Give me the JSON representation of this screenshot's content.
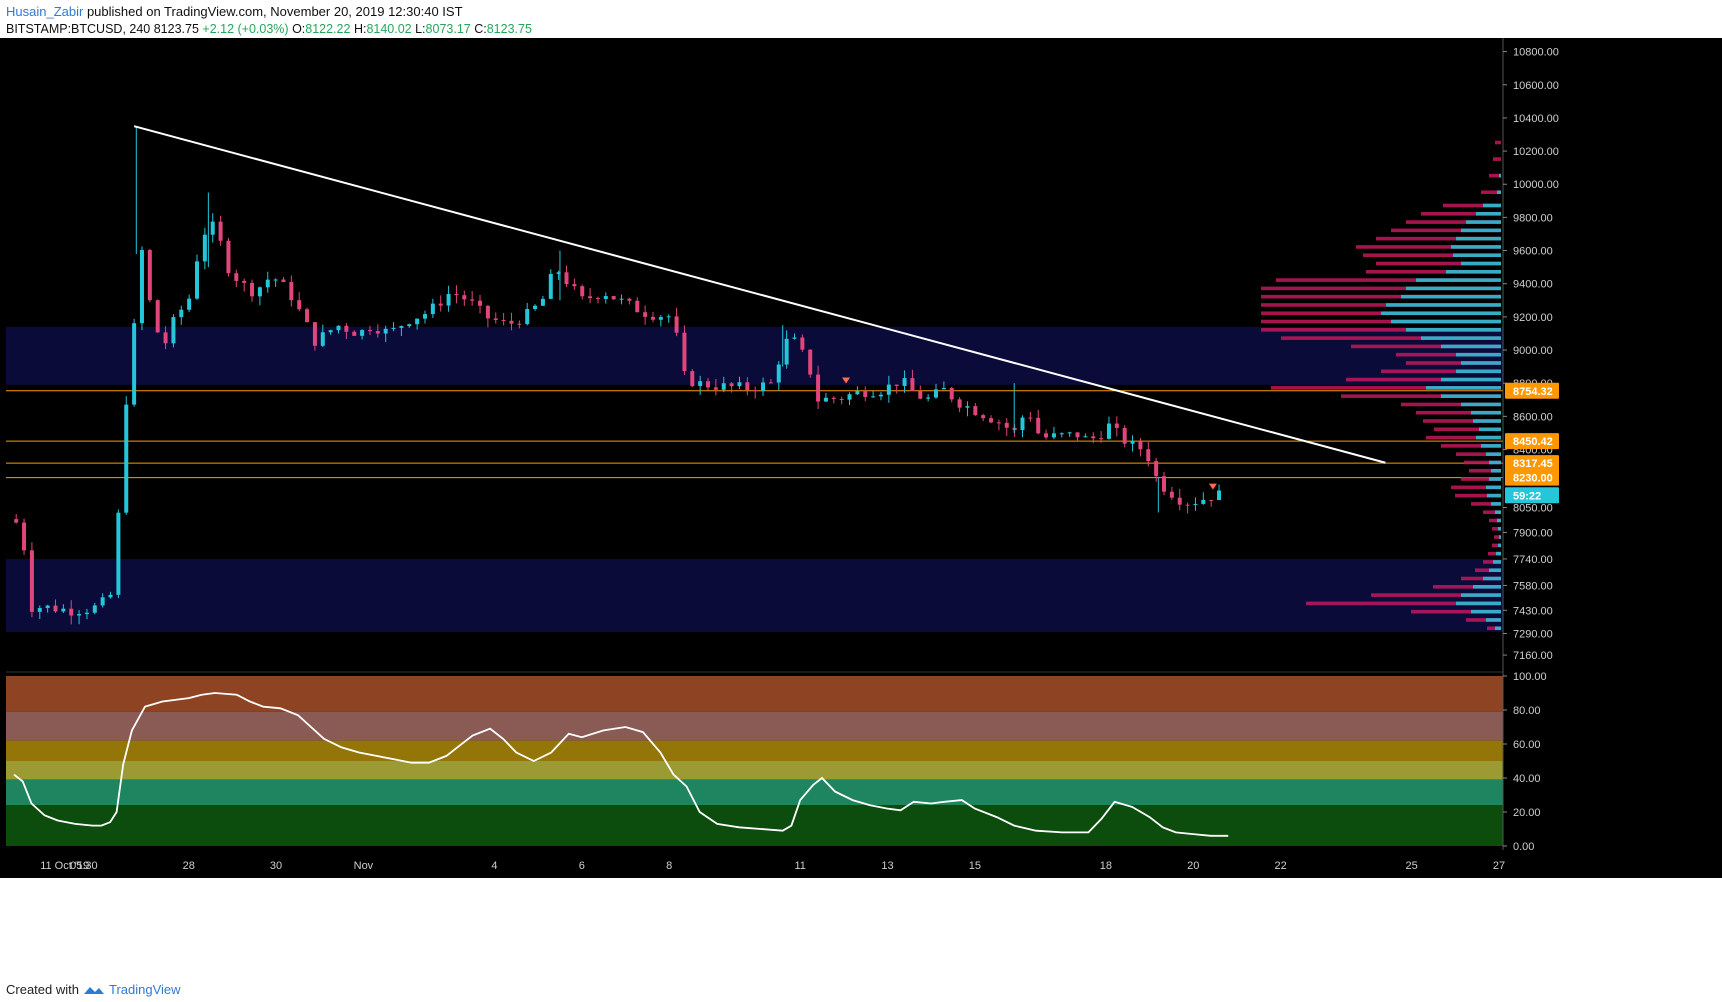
{
  "header": {
    "author": "Husain_Zabir",
    "published": "published on TradingView.com, November 20, 2019 12:30:40 IST",
    "symbol": "BITSTAMP:BTCUSD, 240",
    "last": "8123.75",
    "change": "+2.12 (+0.03%)",
    "o_label": "O:",
    "o": "8122.22",
    "h_label": "H:",
    "h": "8140.02",
    "l_label": "L:",
    "l": "8073.17",
    "c_label": "C:",
    "c": "8123.75"
  },
  "footer": {
    "created": "Created with",
    "brand": "TradingView"
  },
  "colors": {
    "bg": "#000000",
    "up": "#26c6da",
    "down": "#e0457b",
    "trend": "#ffffff",
    "level": "#ff9800",
    "zone": "#0b0b3a",
    "rsi_line": "#ffffff",
    "vp_up": "#26c6da",
    "vp_down": "#c2185b"
  },
  "chart_data": [
    {
      "type": "candlestick",
      "ylim": [
        7070,
        10870
      ],
      "y_ticks": [
        "10800.00",
        "10600.00",
        "10400.00",
        "10200.00",
        "10000.00",
        "9800.00",
        "9600.00",
        "9400.00",
        "9200.00",
        "9000.00",
        "8800.00",
        "8600.00",
        "8400.00",
        "8050.00",
        "7900.00",
        "7740.00",
        "7580.00",
        "7430.00",
        "7290.00",
        "7160.00"
      ],
      "x_ticks": [
        {
          "label": "11 Oct '19",
          "x": 0.6
        },
        {
          "label": "05:30",
          "x": 1.6
        },
        {
          "label": "28",
          "x": 4.0
        },
        {
          "label": "30",
          "x": 6.0
        },
        {
          "label": "Nov",
          "x": 8.0
        },
        {
          "label": "4",
          "x": 11.0
        },
        {
          "label": "6",
          "x": 13.0
        },
        {
          "label": "8",
          "x": 15.0
        },
        {
          "label": "11",
          "x": 18.0
        },
        {
          "label": "13",
          "x": 20.0
        },
        {
          "label": "15",
          "x": 22.0
        },
        {
          "label": "18",
          "x": 25.0
        },
        {
          "label": "20",
          "x": 27.0
        },
        {
          "label": "22",
          "x": 29.0
        },
        {
          "label": "25",
          "x": 32.0
        },
        {
          "label": "27",
          "x": 34.0
        }
      ],
      "price_labels": [
        {
          "price": 8754.32,
          "text": "8754.32",
          "style": "orange"
        },
        {
          "price": 8450.42,
          "text": "8450.42",
          "style": "orange"
        },
        {
          "price": 8317.45,
          "text": "8317.45",
          "style": "orange"
        },
        {
          "price": 8230.0,
          "text": "8230.00",
          "style": "orange"
        },
        {
          "price": 8123.75,
          "text": "59:22",
          "style": "cyan"
        }
      ],
      "levels": [
        8754.32,
        8450.42,
        8317.45,
        8230.0
      ],
      "zones": [
        [
          8790,
          9140
        ],
        [
          7300,
          7740
        ]
      ],
      "trendline": {
        "start": [
          2.75,
          10350
        ],
        "end": [
          31.4,
          8320
        ]
      },
      "marks": [
        {
          "x": 19.05,
          "price": 8810
        },
        {
          "x": 27.45,
          "price": 8170
        }
      ],
      "keypoints": [
        [
          0.0,
          7980
        ],
        [
          0.2,
          7900
        ],
        [
          0.35,
          7450
        ],
        [
          0.7,
          7450
        ],
        [
          1.3,
          7430
        ],
        [
          1.8,
          7440
        ],
        [
          2.2,
          7500
        ],
        [
          2.35,
          7800
        ],
        [
          2.45,
          8300
        ],
        [
          2.55,
          8700
        ],
        [
          2.7,
          8700
        ],
        [
          2.8,
          9570
        ],
        [
          2.95,
          9600
        ],
        [
          3.1,
          9300
        ],
        [
          3.4,
          9000
        ],
        [
          3.7,
          9200
        ],
        [
          4.0,
          9300
        ],
        [
          4.3,
          9700
        ],
        [
          4.6,
          9750
        ],
        [
          4.9,
          9500
        ],
        [
          5.2,
          9400
        ],
        [
          5.5,
          9350
        ],
        [
          5.9,
          9450
        ],
        [
          6.3,
          9350
        ],
        [
          6.6,
          9200
        ],
        [
          6.9,
          9050
        ],
        [
          7.4,
          9150
        ],
        [
          7.9,
          9100
        ],
        [
          8.2,
          9150
        ],
        [
          8.6,
          9100
        ],
        [
          9.0,
          9180
        ],
        [
          9.5,
          9230
        ],
        [
          10.0,
          9350
        ],
        [
          10.4,
          9300
        ],
        [
          10.8,
          9200
        ],
        [
          11.3,
          9150
        ],
        [
          11.8,
          9220
        ],
        [
          12.1,
          9300
        ],
        [
          12.4,
          9500
        ],
        [
          12.7,
          9400
        ],
        [
          13.0,
          9300
        ],
        [
          13.5,
          9350
        ],
        [
          14.0,
          9280
        ],
        [
          14.5,
          9220
        ],
        [
          15.1,
          9200
        ],
        [
          15.3,
          8850
        ],
        [
          15.6,
          8800
        ],
        [
          16.2,
          8780
        ],
        [
          16.8,
          8770
        ],
        [
          17.4,
          8800
        ],
        [
          17.6,
          9050
        ],
        [
          17.9,
          9050
        ],
        [
          18.2,
          8900
        ],
        [
          18.4,
          8700
        ],
        [
          18.9,
          8710
        ],
        [
          19.4,
          8750
        ],
        [
          19.9,
          8760
        ],
        [
          20.3,
          8820
        ],
        [
          20.6,
          8740
        ],
        [
          20.9,
          8700
        ],
        [
          21.3,
          8760
        ],
        [
          21.6,
          8690
        ],
        [
          21.9,
          8650
        ],
        [
          22.3,
          8600
        ],
        [
          22.6,
          8560
        ],
        [
          22.9,
          8500
        ],
        [
          23.2,
          8650
        ],
        [
          23.5,
          8470
        ],
        [
          23.9,
          8480
        ],
        [
          24.4,
          8490
        ],
        [
          24.6,
          8450
        ],
        [
          24.9,
          8500
        ],
        [
          25.1,
          8550
        ],
        [
          25.3,
          8480
        ],
        [
          25.6,
          8420
        ],
        [
          25.9,
          8400
        ],
        [
          26.2,
          8200
        ],
        [
          26.4,
          8160
        ],
        [
          26.7,
          8100
        ],
        [
          26.9,
          8080
        ],
        [
          27.2,
          8100
        ],
        [
          27.5,
          8130
        ],
        [
          27.7,
          8123
        ]
      ]
    },
    {
      "type": "line",
      "title": "",
      "ylim": [
        0,
        100
      ],
      "y_ticks": [
        "100.00",
        "80.00",
        "60.00",
        "40.00",
        "20.00",
        "0.00"
      ],
      "bands": [
        {
          "from": 79,
          "to": 100,
          "color": "#8e4423"
        },
        {
          "from": 62,
          "to": 79,
          "color": "#8a5a55"
        },
        {
          "from": 50,
          "to": 62,
          "color": "#947608"
        },
        {
          "from": 39,
          "to": 50,
          "color": "#9c9a32"
        },
        {
          "from": 24,
          "to": 39,
          "color": "#1e8560"
        },
        {
          "from": 0,
          "to": 24,
          "color": "#0c4d0e"
        }
      ],
      "points": [
        [
          0.0,
          42
        ],
        [
          0.2,
          38
        ],
        [
          0.4,
          25
        ],
        [
          0.7,
          18
        ],
        [
          1.0,
          15
        ],
        [
          1.4,
          13
        ],
        [
          1.8,
          12
        ],
        [
          2.0,
          12
        ],
        [
          2.2,
          14
        ],
        [
          2.35,
          20
        ],
        [
          2.5,
          48
        ],
        [
          2.7,
          68
        ],
        [
          3.0,
          82
        ],
        [
          3.4,
          85
        ],
        [
          4.0,
          87
        ],
        [
          4.3,
          89
        ],
        [
          4.6,
          90
        ],
        [
          5.1,
          89
        ],
        [
          5.4,
          85
        ],
        [
          5.7,
          82
        ],
        [
          6.1,
          81
        ],
        [
          6.5,
          77
        ],
        [
          6.8,
          70
        ],
        [
          7.1,
          63
        ],
        [
          7.5,
          58
        ],
        [
          7.9,
          55
        ],
        [
          8.3,
          53
        ],
        [
          8.7,
          51
        ],
        [
          9.1,
          49
        ],
        [
          9.5,
          49
        ],
        [
          9.9,
          53
        ],
        [
          10.2,
          59
        ],
        [
          10.5,
          65
        ],
        [
          10.9,
          69
        ],
        [
          11.2,
          63
        ],
        [
          11.5,
          55
        ],
        [
          11.9,
          50
        ],
        [
          12.3,
          55
        ],
        [
          12.7,
          66
        ],
        [
          13.0,
          64
        ],
        [
          13.5,
          68
        ],
        [
          14.0,
          70
        ],
        [
          14.4,
          67
        ],
        [
          14.8,
          55
        ],
        [
          15.1,
          42
        ],
        [
          15.4,
          35
        ],
        [
          15.7,
          20
        ],
        [
          16.1,
          13
        ],
        [
          16.6,
          11
        ],
        [
          17.1,
          10
        ],
        [
          17.6,
          9
        ],
        [
          17.8,
          12
        ],
        [
          18.0,
          27
        ],
        [
          18.3,
          36
        ],
        [
          18.5,
          40
        ],
        [
          18.8,
          32
        ],
        [
          19.2,
          27
        ],
        [
          19.6,
          24
        ],
        [
          20.0,
          22
        ],
        [
          20.3,
          21
        ],
        [
          20.6,
          26
        ],
        [
          21.0,
          25
        ],
        [
          21.3,
          26
        ],
        [
          21.7,
          27
        ],
        [
          22.0,
          22
        ],
        [
          22.5,
          17
        ],
        [
          22.9,
          12
        ],
        [
          23.4,
          9
        ],
        [
          24.0,
          8
        ],
        [
          24.6,
          8
        ],
        [
          24.9,
          16
        ],
        [
          25.2,
          26
        ],
        [
          25.6,
          23
        ],
        [
          26.0,
          17
        ],
        [
          26.3,
          11
        ],
        [
          26.6,
          8
        ],
        [
          27.0,
          7
        ],
        [
          27.4,
          6
        ],
        [
          27.8,
          6
        ]
      ]
    }
  ],
  "volume_profile": {
    "min_price": 7300,
    "max_price": 10300,
    "rows": [
      {
        "p": 10250,
        "up": 0,
        "dn": 6
      },
      {
        "p": 10150,
        "up": 0,
        "dn": 8
      },
      {
        "p": 10050,
        "up": 2,
        "dn": 10
      },
      {
        "p": 9950,
        "up": 4,
        "dn": 16
      },
      {
        "p": 9870,
        "up": 18,
        "dn": 40
      },
      {
        "p": 9820,
        "up": 25,
        "dn": 55
      },
      {
        "p": 9770,
        "up": 35,
        "dn": 60
      },
      {
        "p": 9720,
        "up": 40,
        "dn": 70
      },
      {
        "p": 9670,
        "up": 45,
        "dn": 80
      },
      {
        "p": 9620,
        "up": 50,
        "dn": 95
      },
      {
        "p": 9570,
        "up": 48,
        "dn": 90
      },
      {
        "p": 9520,
        "up": 40,
        "dn": 85
      },
      {
        "p": 9470,
        "up": 55,
        "dn": 80
      },
      {
        "p": 9420,
        "up": 85,
        "dn": 140
      },
      {
        "p": 9370,
        "up": 95,
        "dn": 145
      },
      {
        "p": 9320,
        "up": 100,
        "dn": 175
      },
      {
        "p": 9270,
        "up": 115,
        "dn": 215
      },
      {
        "p": 9220,
        "up": 120,
        "dn": 210
      },
      {
        "p": 9170,
        "up": 110,
        "dn": 230
      },
      {
        "p": 9120,
        "up": 95,
        "dn": 210
      },
      {
        "p": 9070,
        "up": 80,
        "dn": 140
      },
      {
        "p": 9020,
        "up": 60,
        "dn": 90
      },
      {
        "p": 8970,
        "up": 45,
        "dn": 60
      },
      {
        "p": 8920,
        "up": 40,
        "dn": 55
      },
      {
        "p": 8870,
        "up": 45,
        "dn": 75
      },
      {
        "p": 8820,
        "up": 60,
        "dn": 95
      },
      {
        "p": 8770,
        "up": 75,
        "dn": 155
      },
      {
        "p": 8720,
        "up": 60,
        "dn": 100
      },
      {
        "p": 8670,
        "up": 40,
        "dn": 60
      },
      {
        "p": 8620,
        "up": 30,
        "dn": 55
      },
      {
        "p": 8570,
        "up": 28,
        "dn": 50
      },
      {
        "p": 8520,
        "up": 22,
        "dn": 45
      },
      {
        "p": 8470,
        "up": 25,
        "dn": 50
      },
      {
        "p": 8420,
        "up": 20,
        "dn": 40
      },
      {
        "p": 8370,
        "up": 15,
        "dn": 30
      },
      {
        "p": 8320,
        "up": 12,
        "dn": 25
      },
      {
        "p": 8270,
        "up": 10,
        "dn": 22
      },
      {
        "p": 8220,
        "up": 12,
        "dn": 28
      },
      {
        "p": 8170,
        "up": 15,
        "dn": 35
      },
      {
        "p": 8120,
        "up": 14,
        "dn": 32
      },
      {
        "p": 8070,
        "up": 10,
        "dn": 20
      },
      {
        "p": 8020,
        "up": 6,
        "dn": 12
      },
      {
        "p": 7970,
        "up": 4,
        "dn": 8
      },
      {
        "p": 7920,
        "up": 3,
        "dn": 6
      },
      {
        "p": 7870,
        "up": 2,
        "dn": 5
      },
      {
        "p": 7820,
        "up": 3,
        "dn": 6
      },
      {
        "p": 7770,
        "up": 5,
        "dn": 8
      },
      {
        "p": 7720,
        "up": 8,
        "dn": 10
      },
      {
        "p": 7670,
        "up": 12,
        "dn": 14
      },
      {
        "p": 7620,
        "up": 18,
        "dn": 22
      },
      {
        "p": 7570,
        "up": 28,
        "dn": 40
      },
      {
        "p": 7520,
        "up": 40,
        "dn": 90
      },
      {
        "p": 7470,
        "up": 45,
        "dn": 150
      },
      {
        "p": 7420,
        "up": 30,
        "dn": 60
      },
      {
        "p": 7370,
        "up": 15,
        "dn": 20
      },
      {
        "p": 7320,
        "up": 6,
        "dn": 8
      }
    ]
  }
}
